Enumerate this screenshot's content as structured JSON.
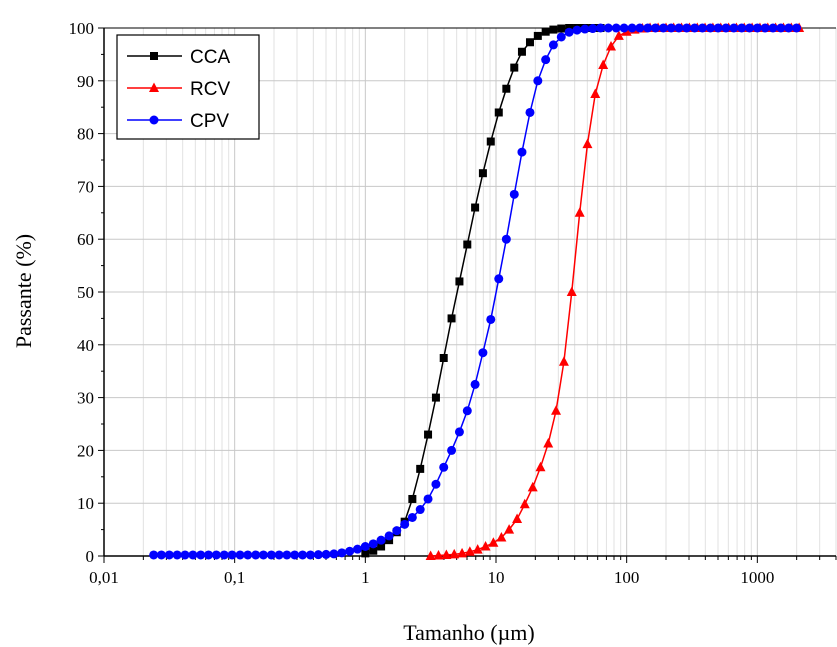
{
  "chart_data": {
    "type": "line",
    "xscale": "log",
    "xlim": [
      0.01,
      4000
    ],
    "ylim": [
      0,
      100
    ],
    "xlabel": "Tamanho (µm)",
    "ylabel": "Passante (%)",
    "x_tick_values": [
      0.01,
      0.1,
      1,
      10,
      100,
      1000
    ],
    "x_tick_labels": [
      "0,01",
      "0,1",
      "1",
      "10",
      "100",
      "1000"
    ],
    "y_tick_values": [
      0,
      10,
      20,
      30,
      40,
      50,
      60,
      70,
      80,
      90,
      100
    ],
    "y_tick_labels": [
      "0",
      "10",
      "20",
      "30",
      "40",
      "50",
      "60",
      "70",
      "80",
      "90",
      "100"
    ],
    "grid": true,
    "legend_position": "top-left",
    "series": [
      {
        "name": "CCA",
        "color": "#000000",
        "marker": "square",
        "x": [
          1.0,
          1.15,
          1.32,
          1.52,
          1.74,
          2.0,
          2.29,
          2.63,
          3.02,
          3.47,
          3.98,
          4.57,
          5.25,
          6.03,
          6.92,
          7.94,
          9.12,
          10.5,
          12.0,
          13.8,
          15.8,
          18.2,
          20.9,
          24.0,
          27.5,
          31.6,
          36.3,
          41.7,
          47.9,
          55.0,
          63.1
        ],
        "y": [
          0.5,
          1.0,
          1.8,
          3.0,
          4.5,
          6.5,
          10.8,
          16.5,
          23.0,
          30.0,
          37.5,
          45.0,
          52.0,
          59.0,
          66.0,
          72.5,
          78.5,
          84.0,
          88.5,
          92.5,
          95.5,
          97.3,
          98.5,
          99.3,
          99.7,
          99.9,
          100,
          100,
          100,
          100,
          100
        ]
      },
      {
        "name": "RCV",
        "color": "#ff0000",
        "marker": "triangle",
        "x": [
          3.16,
          3.63,
          4.17,
          4.79,
          5.5,
          6.31,
          7.24,
          8.32,
          9.55,
          11.0,
          12.6,
          14.5,
          16.6,
          19.1,
          21.9,
          25.1,
          28.8,
          33.1,
          38.0,
          43.7,
          50.1,
          57.5,
          66.1,
          75.9,
          87.1,
          100,
          115,
          132,
          151,
          174,
          200,
          229,
          263,
          302,
          347,
          398,
          457,
          525,
          603,
          692,
          794,
          912,
          1047,
          1202,
          1380,
          1585,
          1820,
          2089
        ],
        "y": [
          0.0,
          0.1,
          0.2,
          0.3,
          0.5,
          0.8,
          1.2,
          1.8,
          2.5,
          3.5,
          5.0,
          7.0,
          9.8,
          13.0,
          16.8,
          21.3,
          27.5,
          36.8,
          50.0,
          65.0,
          78.0,
          87.5,
          93.0,
          96.5,
          98.5,
          99.3,
          99.7,
          99.9,
          100,
          100,
          100,
          100,
          100,
          100,
          100,
          100,
          100,
          100,
          100,
          100,
          100,
          100,
          100,
          100,
          100,
          100,
          100,
          100
        ]
      },
      {
        "name": "CPV",
        "color": "#0000ff",
        "marker": "circle",
        "x": [
          0.024,
          0.0275,
          0.0316,
          0.0363,
          0.0417,
          0.0479,
          0.055,
          0.0631,
          0.0724,
          0.0832,
          0.0955,
          0.11,
          0.126,
          0.145,
          0.166,
          0.191,
          0.219,
          0.251,
          0.288,
          0.331,
          0.38,
          0.437,
          0.501,
          0.575,
          0.661,
          0.759,
          0.871,
          1.0,
          1.15,
          1.32,
          1.52,
          1.74,
          2.0,
          2.29,
          2.63,
          3.02,
          3.47,
          3.98,
          4.57,
          5.25,
          6.03,
          6.92,
          7.94,
          9.12,
          10.5,
          12.0,
          13.8,
          15.8,
          18.2,
          20.9,
          24.0,
          27.5,
          31.6,
          36.3,
          41.7,
          47.9,
          55.0,
          63.1,
          72.4,
          83.2,
          95.5,
          110,
          126,
          145,
          166,
          191,
          219,
          251,
          288,
          331,
          380,
          437,
          501,
          575,
          661,
          759,
          871,
          1000,
          1148,
          1318,
          1514,
          1738,
          1995
        ],
        "y": [
          0.2,
          0.2,
          0.2,
          0.2,
          0.2,
          0.2,
          0.2,
          0.2,
          0.2,
          0.2,
          0.2,
          0.2,
          0.2,
          0.2,
          0.2,
          0.2,
          0.2,
          0.2,
          0.2,
          0.2,
          0.2,
          0.25,
          0.3,
          0.4,
          0.6,
          0.9,
          1.3,
          1.8,
          2.3,
          3.0,
          3.8,
          4.8,
          6.0,
          7.3,
          8.8,
          10.8,
          13.6,
          16.8,
          20.0,
          23.5,
          27.5,
          32.5,
          38.5,
          44.8,
          52.5,
          60.0,
          68.5,
          76.5,
          84.0,
          90.0,
          94.0,
          96.8,
          98.3,
          99.2,
          99.6,
          99.8,
          99.9,
          100,
          100,
          100,
          100,
          100,
          100,
          100,
          100,
          100,
          100,
          100,
          100,
          100,
          100,
          100,
          100,
          100,
          100,
          100,
          100,
          100,
          100,
          100,
          100,
          100,
          100
        ]
      }
    ]
  }
}
